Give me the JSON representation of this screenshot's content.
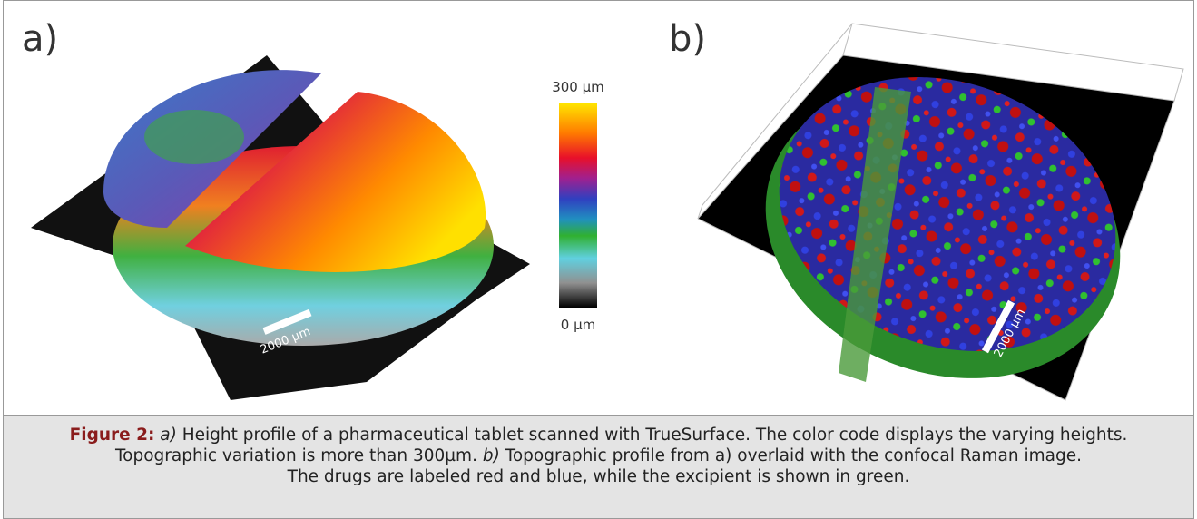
{
  "panels": [
    {
      "label": "a)",
      "scale_bar": "2000 µm"
    },
    {
      "label": "b)",
      "scale_bar": "2000 µm"
    }
  ],
  "colorbar": {
    "max_label": "300 µm",
    "min_label": "0 µm"
  },
  "caption": {
    "label": "Figure 2:",
    "a_marker": "a)",
    "a_text": "Height profile of a pharmaceutical tablet scanned with TrueSurface. The color code displays the varying heights.",
    "line2": "Topographic variation is more than 300µm.",
    "b_marker": "b)",
    "b_text": "Topographic profile from a) overlaid with the confocal Raman image.",
    "line3": "The drugs are labeled red and blue, while the excipient is shown in green."
  }
}
